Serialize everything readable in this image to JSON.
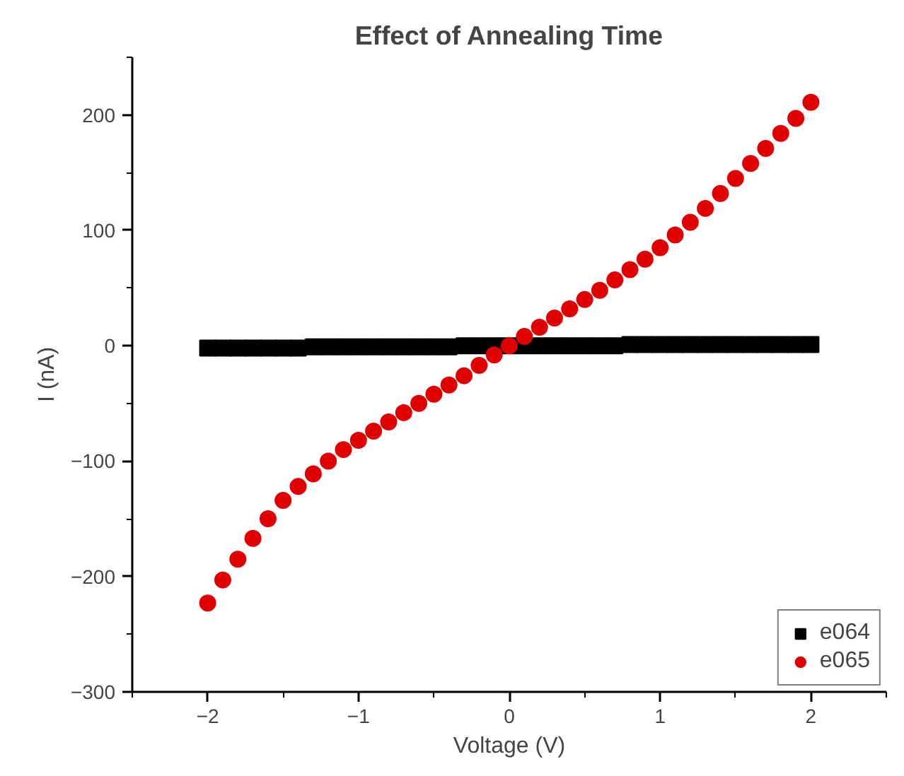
{
  "chart_data": {
    "type": "scatter",
    "title": "Effect of Annealing Time",
    "xlabel": "Voltage (V)",
    "ylabel": "I (nA)",
    "xlim": [
      -2.5,
      2.5
    ],
    "xticks": [
      -2,
      -1,
      0,
      1,
      2
    ],
    "ylim": [
      -300,
      250
    ],
    "yticks": [
      -300,
      -200,
      -100,
      0,
      100,
      200
    ],
    "grid": false,
    "legend": "bottom right",
    "x": [
      -2,
      -1.9,
      -1.8,
      -1.7,
      -1.6,
      -1.5,
      -1.4,
      -1.3,
      -1.2,
      -1.1,
      -1,
      -0.9,
      -0.8,
      -0.7,
      -0.6,
      -0.5,
      -0.4,
      -0.3,
      -0.2,
      -0.1,
      0,
      0.1,
      0.2,
      0.3,
      0.4,
      0.5,
      0.6,
      0.7,
      0.8,
      0.9,
      1,
      1.1,
      1.2,
      1.3,
      1.4,
      1.5,
      1.6,
      1.7,
      1.8,
      1.9,
      2
    ],
    "series": [
      {
        "name": "e064",
        "color": "#000000",
        "marker": "square",
        "values": [
          -2,
          -2,
          -2,
          -2,
          -2,
          -2,
          -2,
          -1,
          -1,
          -1,
          -1,
          -1,
          -1,
          -1,
          -1,
          -1,
          -1,
          0,
          0,
          0,
          0,
          0,
          0,
          0,
          0,
          0,
          0,
          0,
          1,
          1,
          1,
          1,
          1,
          1,
          1,
          1,
          1,
          1,
          1,
          1,
          1
        ]
      },
      {
        "name": "e065",
        "color": "#e00000",
        "marker": "circle",
        "values": [
          -223,
          -203,
          -185,
          -167,
          -150,
          -134,
          -122,
          -111,
          -100,
          -90,
          -82,
          -74,
          -66,
          -58,
          -50,
          -42,
          -34,
          -26,
          -17,
          -8,
          0,
          8,
          16,
          24,
          32,
          40,
          48,
          57,
          66,
          75,
          85,
          96,
          107,
          119,
          132,
          145,
          158,
          171,
          184,
          197,
          211
        ]
      }
    ]
  }
}
